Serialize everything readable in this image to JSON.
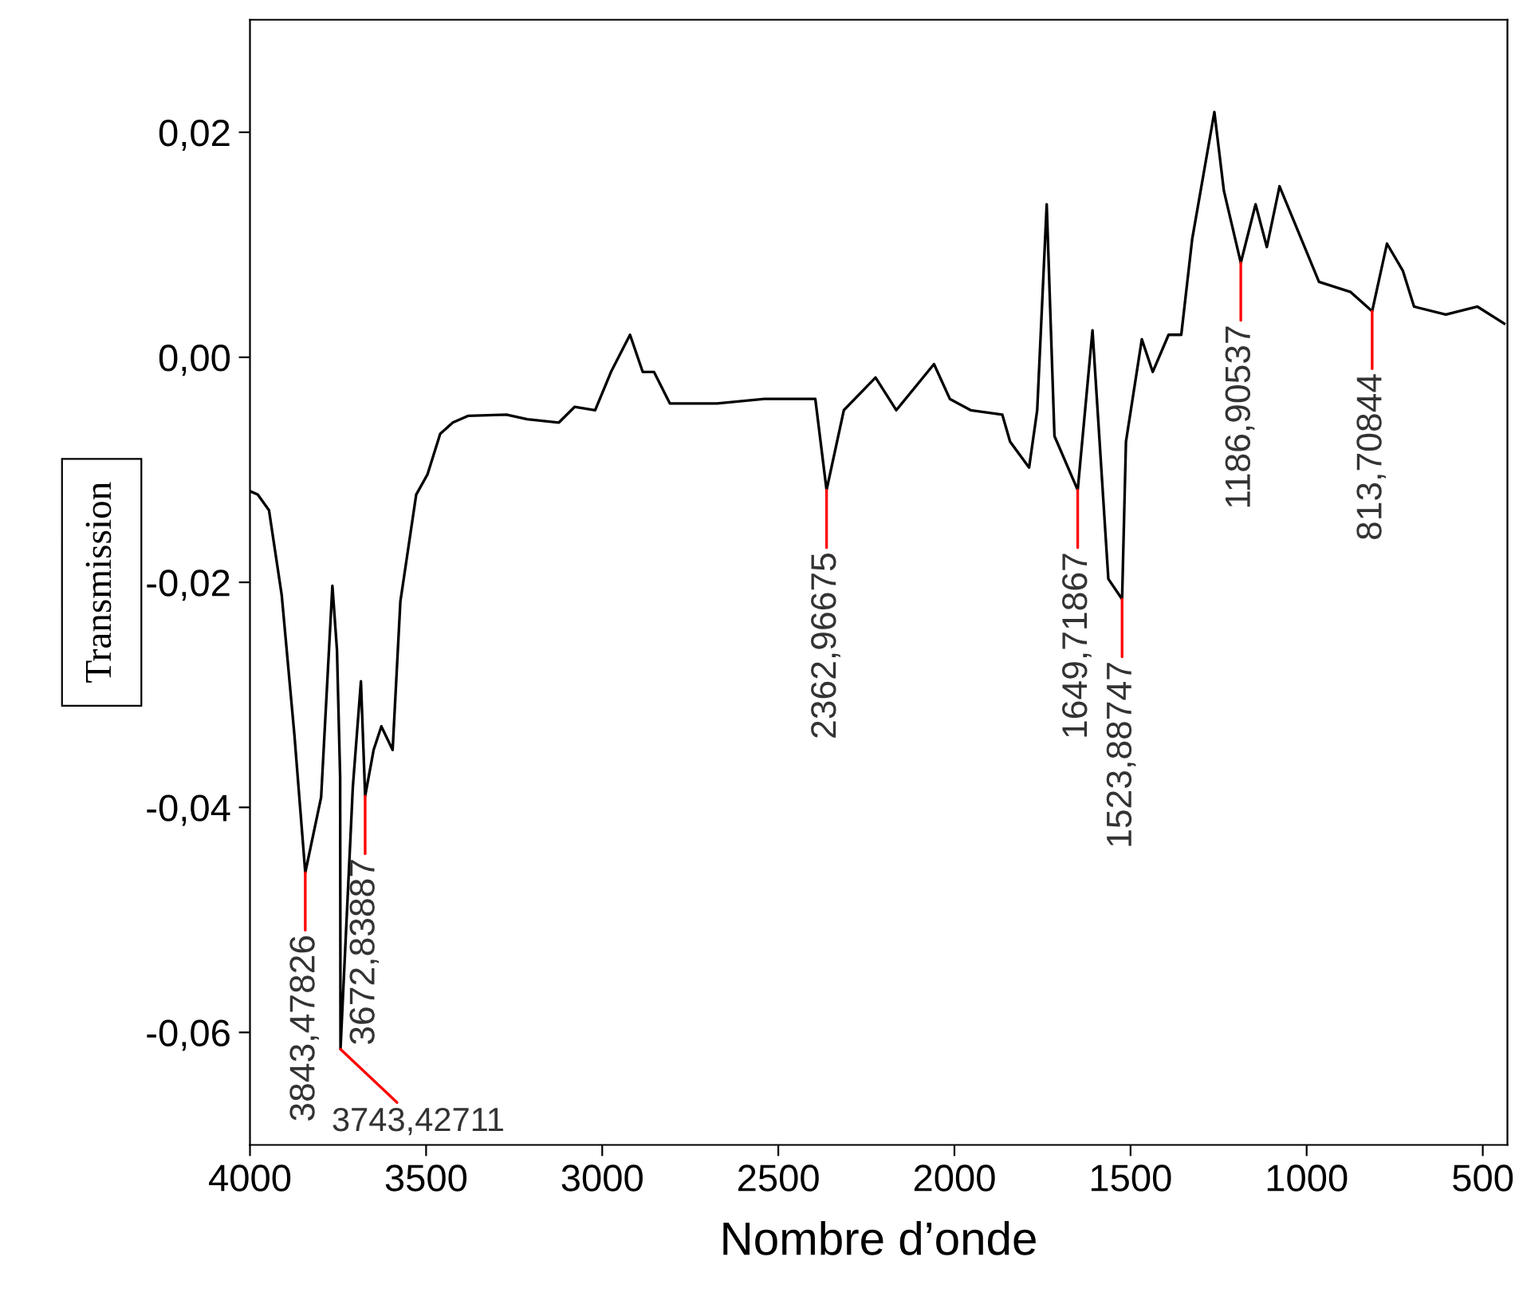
{
  "chart_data": {
    "type": "line",
    "xlabel": "Nombre d’onde",
    "ylabel": "Transmission",
    "xlim": [
      4000,
      430
    ],
    "ylim": [
      -0.07,
      0.03
    ],
    "xticks": [
      4000,
      3500,
      3000,
      2500,
      2000,
      1500,
      1000,
      500
    ],
    "yticks": [
      {
        "value": 0.02,
        "label": "0,02"
      },
      {
        "value": 0.0,
        "label": "0,00"
      },
      {
        "value": -0.02,
        "label": "-0,02"
      },
      {
        "value": -0.04,
        "label": "-0,04"
      },
      {
        "value": -0.06,
        "label": "-0,06"
      }
    ],
    "grid": false,
    "legend": false,
    "marker": "none",
    "line_style": "solid",
    "series": [
      {
        "color": "#000000",
        "x": [
          4000,
          3978,
          3946,
          3910,
          3874,
          3843,
          3798,
          3766,
          3753,
          3744,
          3743,
          3708,
          3685,
          3673,
          3649,
          3627,
          3595,
          3573,
          3528,
          3496,
          3460,
          3424,
          3380,
          3272,
          3213,
          3123,
          3078,
          3020,
          2975,
          2921,
          2885,
          2853,
          2808,
          2674,
          2539,
          2395,
          2363,
          2314,
          2224,
          2165,
          2058,
          2013,
          1954,
          1864,
          1842,
          1788,
          1765,
          1738,
          1716,
          1650,
          1608,
          1563,
          1524,
          1513,
          1468,
          1437,
          1392,
          1356,
          1325,
          1262,
          1235,
          1187,
          1145,
          1113,
          1077,
          965,
          875,
          814,
          772,
          727,
          695,
          605,
          515,
          439
        ],
        "values": [
          -0.0119,
          -0.0122,
          -0.0136,
          -0.0211,
          -0.0335,
          -0.0458,
          -0.0391,
          -0.0203,
          -0.026,
          -0.0373,
          -0.0615,
          -0.0382,
          -0.0288,
          -0.039,
          -0.0349,
          -0.0328,
          -0.0349,
          -0.0217,
          -0.0122,
          -0.0104,
          -0.0068,
          -0.0058,
          -0.0052,
          -0.0051,
          -0.0055,
          -0.0058,
          -0.0044,
          -0.0047,
          -0.0013,
          0.002,
          -0.0013,
          -0.0013,
          -0.0041,
          -0.0041,
          -0.0037,
          -0.0037,
          -0.0118,
          -0.0047,
          -0.0018,
          -0.0047,
          -0.0006,
          -0.0037,
          -0.0047,
          -0.0051,
          -0.0075,
          -0.0098,
          -0.0047,
          0.0136,
          -0.007,
          -0.0118,
          0.0024,
          -0.0197,
          -0.0215,
          -0.0075,
          0.0016,
          -0.0013,
          0.002,
          0.002,
          0.0105,
          0.0218,
          0.0148,
          0.0084,
          0.0136,
          0.0098,
          0.0152,
          0.0067,
          0.0058,
          0.0041,
          0.0101,
          0.0077,
          0.0045,
          0.0038,
          0.0045,
          0.003
        ]
      }
    ],
    "annotations": [
      {
        "text": "3843,47826",
        "x": 3843,
        "y": -0.0458
      },
      {
        "text": "3743,42711",
        "x": 3743,
        "y": -0.0615
      },
      {
        "text": "3672,83887",
        "x": 3673,
        "y": -0.039
      },
      {
        "text": "2362,96675",
        "x": 2363,
        "y": -0.0118
      },
      {
        "text": "1649,71867",
        "x": 1650,
        "y": -0.0118
      },
      {
        "text": "1523,88747",
        "x": 1524,
        "y": -0.0215
      },
      {
        "text": "1186,90537",
        "x": 1187,
        "y": 0.0084
      },
      {
        "text": "813,70844",
        "x": 814,
        "y": 0.0041
      }
    ]
  }
}
